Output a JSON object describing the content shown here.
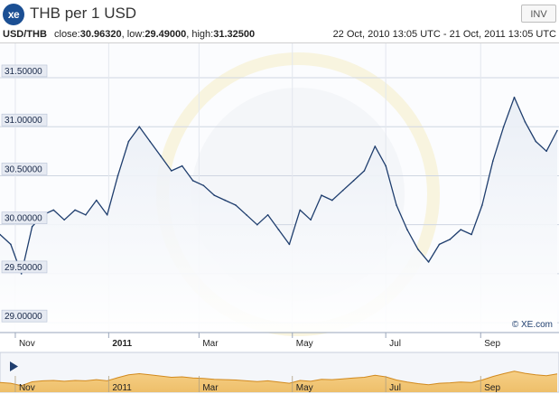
{
  "header": {
    "logo_text": "xe",
    "title": "THB per 1 USD",
    "inv_label": "INV"
  },
  "stats": {
    "pair": "USD/THB",
    "close_label": "close:",
    "close": "30.96320",
    "low_label": "low:",
    "low": "29.49000",
    "high_label": "high:",
    "high": "31.32500",
    "date_range": "22 Oct, 2010 13:05 UTC - 21 Oct, 2011 13:05 UTC"
  },
  "watermark": "© XE.com",
  "colors": {
    "line": "#1f3e6e",
    "area_top": "#e8edf5",
    "grid": "#cfd6e2",
    "label_bg": "#e6eaf2",
    "navigator_fill": "#f3c87b",
    "navigator_stroke": "#d28a1e",
    "logo": "#1b4f93"
  },
  "chart_data": {
    "type": "line",
    "title": "THB per 1 USD",
    "series_name": "USD/THB",
    "ylim": [
      28.9,
      31.85
    ],
    "yticks": [
      "29.00000",
      "29.50000",
      "30.00000",
      "30.50000",
      "31.00000",
      "31.50000"
    ],
    "xticks": [
      {
        "label": "Nov",
        "date": "2010-11-01",
        "bold": false
      },
      {
        "label": "2011",
        "date": "2011-01-01",
        "bold": true
      },
      {
        "label": "Mar",
        "date": "2011-03-01",
        "bold": false
      },
      {
        "label": "May",
        "date": "2011-05-01",
        "bold": false
      },
      {
        "label": "Jul",
        "date": "2011-07-01",
        "bold": false
      },
      {
        "label": "Sep",
        "date": "2011-09-01",
        "bold": false
      }
    ],
    "x": [
      "2010-10-22",
      "2010-10-29",
      "2010-11-05",
      "2010-11-12",
      "2010-11-19",
      "2010-11-26",
      "2010-12-03",
      "2010-12-10",
      "2010-12-17",
      "2010-12-24",
      "2010-12-31",
      "2011-01-07",
      "2011-01-14",
      "2011-01-21",
      "2011-01-28",
      "2011-02-04",
      "2011-02-11",
      "2011-02-18",
      "2011-02-25",
      "2011-03-04",
      "2011-03-11",
      "2011-03-18",
      "2011-03-25",
      "2011-04-01",
      "2011-04-08",
      "2011-04-15",
      "2011-04-22",
      "2011-04-29",
      "2011-05-06",
      "2011-05-13",
      "2011-05-20",
      "2011-05-27",
      "2011-06-03",
      "2011-06-10",
      "2011-06-17",
      "2011-06-24",
      "2011-07-01",
      "2011-07-08",
      "2011-07-15",
      "2011-07-22",
      "2011-07-29",
      "2011-08-05",
      "2011-08-12",
      "2011-08-19",
      "2011-08-26",
      "2011-09-02",
      "2011-09-09",
      "2011-09-16",
      "2011-09-23",
      "2011-09-30",
      "2011-10-07",
      "2011-10-14",
      "2011-10-21"
    ],
    "values": [
      29.9,
      29.8,
      29.5,
      29.98,
      30.1,
      30.15,
      30.05,
      30.15,
      30.1,
      30.25,
      30.1,
      30.5,
      30.85,
      31.0,
      30.85,
      30.7,
      30.55,
      30.6,
      30.45,
      30.4,
      30.3,
      30.25,
      30.2,
      30.1,
      30.0,
      30.1,
      29.95,
      29.8,
      30.15,
      30.05,
      30.3,
      30.25,
      30.35,
      30.45,
      30.55,
      30.8,
      30.6,
      30.2,
      29.95,
      29.75,
      29.62,
      29.8,
      29.85,
      29.95,
      29.9,
      30.2,
      30.65,
      31.0,
      31.3,
      31.05,
      30.85,
      30.75,
      30.96
    ]
  },
  "navigator": {
    "xticks": [
      "Nov",
      "2011",
      "Mar",
      "May",
      "Jul",
      "Sep"
    ]
  }
}
